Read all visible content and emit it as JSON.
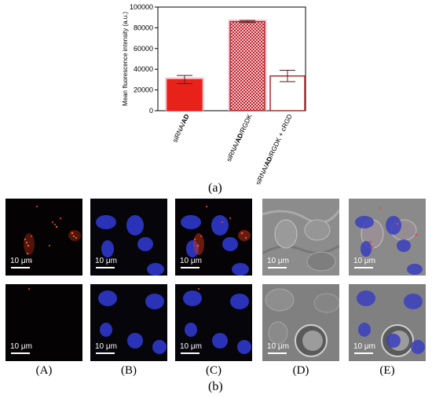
{
  "chart_data": {
    "type": "bar",
    "categories": [
      "siRNA/AD",
      "siRNA/AD/RGDK",
      "siRNA/AD/RGDK + cRGD"
    ],
    "values": [
      30000,
      86000,
      33500
    ],
    "errors": [
      4000,
      1000,
      5500
    ],
    "colors": [
      "#e8221a",
      "#c0272d",
      "#ffffff"
    ],
    "ylabel": "Mean fluorescence intensity (a.u.)",
    "ylim": [
      0,
      100000
    ],
    "yticks": [
      "0",
      "20000",
      "40000",
      "60000",
      "80000",
      "100000"
    ],
    "xlabel": "",
    "title": ""
  },
  "captions": {
    "part_a": "(a)",
    "part_b": "(b)"
  },
  "panels": {
    "scale_text": "10 μm",
    "columns": [
      "(A)",
      "(B)",
      "(C)",
      "(D)",
      "(E)"
    ]
  }
}
